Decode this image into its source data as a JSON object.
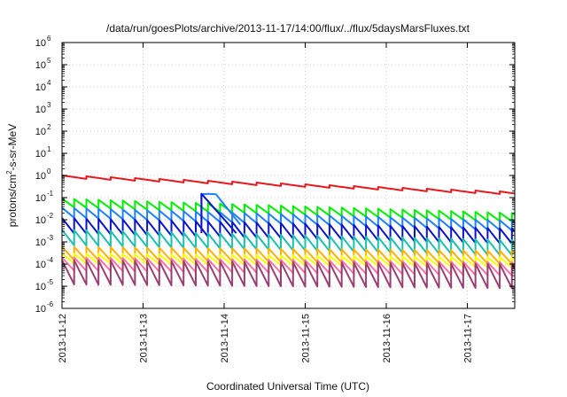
{
  "chart_data": {
    "type": "line",
    "title": "/data/run/goesPlots/archive/2013-11-17/14:00/flux/../flux/5daysMarsFluxes.txt",
    "xlabel": "Coordinated Universal Time (UTC)",
    "ylabel": {
      "base": "protons/cm",
      "sup": "2",
      "rest": "-s-sr-MeV"
    },
    "y_scale": "log",
    "ylim": [
      1e-06,
      1000000.0
    ],
    "xlim": [
      "2013-11-12 00:00",
      "2013-11-17 15:30"
    ],
    "grid": true,
    "legend": "none",
    "x_ticks": [
      {
        "label": "2013-11-12",
        "day": 0
      },
      {
        "label": "2013-11-13",
        "day": 1
      },
      {
        "label": "2013-11-14",
        "day": 2
      },
      {
        "label": "2013-11-15",
        "day": 3
      },
      {
        "label": "2013-11-16",
        "day": 4
      },
      {
        "label": "2013-11-17",
        "day": 5
      }
    ],
    "y_ticks": [
      {
        "base": "10",
        "exp": "-6",
        "value": 1e-06
      },
      {
        "base": "10",
        "exp": "-5",
        "value": 1e-05
      },
      {
        "base": "10",
        "exp": "-4",
        "value": 0.0001
      },
      {
        "base": "10",
        "exp": "-3",
        "value": 0.001
      },
      {
        "base": "10",
        "exp": "-2",
        "value": 0.01
      },
      {
        "base": "10",
        "exp": "-1",
        "value": 0.1
      },
      {
        "base": "10",
        "exp": "0",
        "value": 1
      },
      {
        "base": "10",
        "exp": "1",
        "value": 10
      },
      {
        "base": "10",
        "exp": "2",
        "value": 100
      },
      {
        "base": "10",
        "exp": "3",
        "value": 1000
      },
      {
        "base": "10",
        "exp": "4",
        "value": 10000
      },
      {
        "base": "10",
        "exp": "5",
        "value": 100000
      },
      {
        "base": "10",
        "exp": "6",
        "value": 1000000
      }
    ],
    "series": [
      {
        "color": "#e8191e",
        "sawtooth_period_days": 0.3,
        "peak": [
          1.0,
          0.18
        ],
        "trough_ratio": 0.7
      },
      {
        "color": "#00ee00",
        "sawtooth_period_days": 0.15,
        "peak": [
          0.09,
          0.02
        ],
        "trough_ratio": 0.4
      },
      {
        "color": "#1f7fff",
        "sawtooth_period_days": 0.15,
        "peak": [
          0.035,
          0.009
        ],
        "trough_ratio": 0.35
      },
      {
        "color": "#0a14c8",
        "sawtooth_period_days": 0.15,
        "peak": [
          0.012,
          0.004
        ],
        "trough_ratio": 0.2
      },
      {
        "color": "#1ac0b0",
        "sawtooth_period_days": 0.15,
        "peak": [
          0.0035,
          0.0012
        ],
        "trough_ratio": 0.2
      },
      {
        "color": "#ffb000",
        "sawtooth_period_days": 0.15,
        "peak": [
          0.0006,
          0.0004
        ],
        "trough_ratio": 0.25
      },
      {
        "color": "#ffff00",
        "sawtooth_period_days": 0.15,
        "peak": [
          0.0003,
          0.0002
        ],
        "trough_ratio": 0.35
      },
      {
        "color": "#ff6f9f",
        "sawtooth_period_days": 0.15,
        "peak": [
          0.0002,
          0.00012
        ],
        "trough_ratio": 0.25
      },
      {
        "color": "#9a3f72",
        "sawtooth_period_days": 0.15,
        "peak": [
          0.00015,
          0.0001
        ],
        "trough_ratio": 0.08
      }
    ],
    "event": {
      "color": "#1f7fff",
      "onset_day": 1.72,
      "plateau": 0.14,
      "plateau_end_day": 1.9,
      "decay_end_day": 2.2,
      "decay_to": 0.006
    },
    "event_core": {
      "color": "#0a14c8",
      "onset_day": 1.72,
      "peak": 0.15,
      "decay_end_day": 2.15,
      "decay_to": 0.0025
    }
  }
}
